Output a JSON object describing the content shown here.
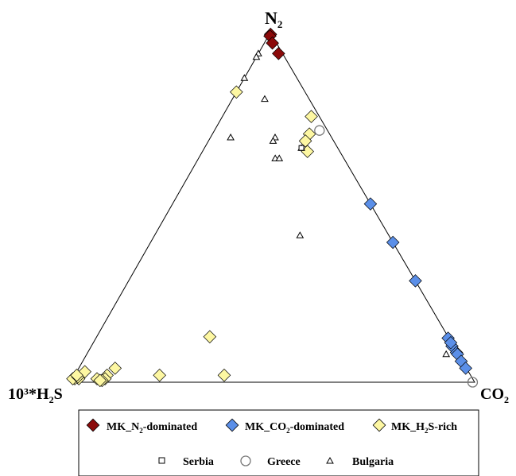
{
  "chart_data": {
    "type": "ternary-scatter",
    "apex_labels": {
      "top": {
        "base": "N",
        "sub": "2"
      },
      "left": {
        "prefix": "10³*H",
        "sub": "2",
        "suffix": "S"
      },
      "right": {
        "base": "CO",
        "sub": "2"
      }
    },
    "colors": {
      "n2_dominated": "#8b0a0a",
      "co2_dominated": "#5b8fe8",
      "h2s_rich": "#fdf7a2"
    },
    "legend": {
      "row1": [
        {
          "key": "n2",
          "pre": "MK_N",
          "sub": "2",
          "post": "-dominated",
          "marker": "diamond",
          "color": "#8b0a0a"
        },
        {
          "key": "co2",
          "pre": "MK_CO",
          "sub": "2",
          "post": "-dominated",
          "marker": "diamond",
          "color": "#5b8fe8"
        },
        {
          "key": "h2s",
          "pre": "MK_H",
          "sub": "2",
          "post": "S-rich",
          "marker": "diamond",
          "color": "#fdf7a2"
        }
      ],
      "row2": [
        {
          "key": "serbia",
          "label": "Serbia",
          "marker": "square"
        },
        {
          "key": "greece",
          "label": "Greece",
          "marker": "circle"
        },
        {
          "key": "bulgaria",
          "label": "Bulgaria",
          "marker": "triangle"
        }
      ]
    },
    "series": [
      {
        "key": "n2",
        "marker": "diamond",
        "color": "#8b0a0a",
        "points": [
          [
            0.995,
            0.003
          ],
          [
            0.99,
            0.004
          ],
          [
            0.97,
            0.02
          ],
          [
            0.94,
            0.05
          ]
        ]
      },
      {
        "key": "co2",
        "marker": "diamond",
        "color": "#5b8fe8",
        "points": [
          [
            0.51,
            0.49
          ],
          [
            0.4,
            0.6
          ],
          [
            0.29,
            0.71
          ],
          [
            0.126,
            0.872
          ],
          [
            0.103,
            0.893
          ],
          [
            0.113,
            0.885
          ],
          [
            0.085,
            0.913
          ],
          [
            0.08,
            0.918
          ],
          [
            0.06,
            0.937
          ],
          [
            0.04,
            0.958
          ]
        ]
      },
      {
        "key": "h2s",
        "marker": "diamond",
        "color": "#fdf7a2",
        "points": [
          [
            0.83,
            0.0
          ],
          [
            0.76,
            0.22
          ],
          [
            0.71,
            0.24
          ],
          [
            0.69,
            0.24
          ],
          [
            0.66,
            0.26
          ],
          [
            0.13,
            0.28
          ],
          [
            0.02,
            0.37
          ],
          [
            0.02,
            0.21
          ],
          [
            0.04,
            0.09
          ],
          [
            0.02,
            0.08
          ],
          [
            0.01,
            0.08
          ],
          [
            0.01,
            0.06
          ],
          [
            0.03,
            0.02
          ],
          [
            0.01,
            0.015
          ],
          [
            0.01,
            0.005
          ],
          [
            0.005,
            0.075
          ],
          [
            0.01,
            0.0
          ],
          [
            0.015,
            0.01
          ],
          [
            0.02,
            0.005
          ],
          [
            0.005,
            0.07
          ]
        ]
      },
      {
        "key": "bulgaria",
        "marker": "triangle",
        "color": "#ffffff",
        "points": [
          [
            0.94,
            0.0
          ],
          [
            0.93,
            0.0
          ],
          [
            0.87,
            0.0
          ],
          [
            0.81,
            0.08
          ],
          [
            0.7,
            0.05
          ],
          [
            0.7,
            0.16
          ],
          [
            0.69,
            0.16
          ],
          [
            0.64,
            0.19
          ],
          [
            0.64,
            0.2
          ],
          [
            0.67,
            0.24
          ],
          [
            0.42,
            0.36
          ],
          [
            0.08,
            0.89
          ]
        ]
      },
      {
        "key": "serbia",
        "marker": "square",
        "color": "#ffffff",
        "points": [
          [
            0.67,
            0.24
          ]
        ]
      },
      {
        "key": "greece",
        "marker": "circle",
        "color": "#ffffff",
        "points": [
          [
            0.0,
            0.995
          ],
          [
            0.72,
            0.26
          ]
        ]
      }
    ]
  }
}
